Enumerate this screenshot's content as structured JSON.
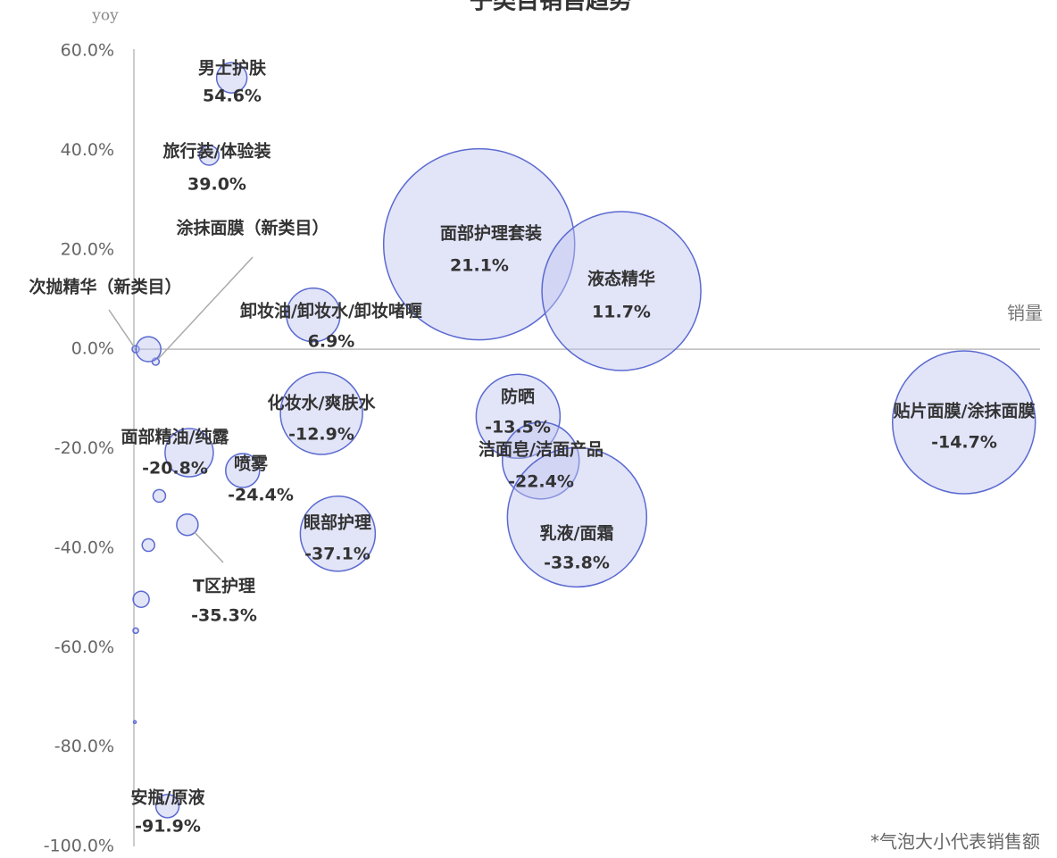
{
  "chart_data": {
    "type": "bubble",
    "title": "子类目销售趋势",
    "x_label": "销量",
    "y_label": "yoy",
    "note": "*气泡大小代表销售额",
    "color": "#5a6ad0",
    "xlim": [
      0,
      100
    ],
    "ylim": [
      -100,
      60
    ],
    "yticks": [
      {
        "value": 60,
        "label": "60.0%"
      },
      {
        "value": 40,
        "label": "40.0%"
      },
      {
        "value": 20,
        "label": "20.0%"
      },
      {
        "value": 0,
        "label": "0.0%"
      },
      {
        "value": -20,
        "label": "-20.0%"
      },
      {
        "value": -40,
        "label": "-40.0%"
      },
      {
        "value": -60,
        "label": "-60.0%"
      },
      {
        "value": -80,
        "label": "-80.0%"
      },
      {
        "value": -100,
        "label": "-100.0%"
      }
    ],
    "labels": [
      "男士护肤",
      "旅行装/体验装",
      "涂抹面膜（新类目）",
      "次抛精华（新类目）",
      null,
      "面部护理套装",
      "液态精华",
      "卸妆油/卸妆水/卸妆啫喱",
      "化妆水/爽肤水",
      "防晒",
      "洁面皂/洁面产品",
      "乳液/面霜",
      "贴片面膜/涂抹面膜",
      "面部精油/纯露",
      "喷雾",
      "T区护理",
      "眼部护理",
      "安瓶/原液",
      null,
      null,
      null,
      null,
      null
    ],
    "x": [
      10.8,
      8.3,
      2.4,
      0.2,
      1.6,
      38.1,
      53.8,
      19.8,
      20.7,
      42.4,
      44.9,
      48.9,
      91.6,
      6.1,
      12.0,
      5.9,
      22.5,
      3.7,
      2.8,
      1.6,
      0.8,
      0.2,
      0.1
    ],
    "values": [
      54.6,
      39.0,
      -2.5,
      0,
      0,
      21.1,
      11.7,
      6.9,
      -12.9,
      -13.5,
      -22.4,
      -33.8,
      -14.7,
      -20.8,
      -24.4,
      -35.3,
      -37.1,
      -91.9,
      -29.5,
      -39.4,
      -50.3,
      -56.6,
      -75.0
    ],
    "value_labels": [
      "54.6%",
      "39.0%",
      null,
      null,
      null,
      "21.1%",
      "11.7%",
      "6.9%",
      "-12.9%",
      "-13.5%",
      "-22.4%",
      "-33.8%",
      "-14.7%",
      "-20.8%",
      "-24.4%",
      "-35.3%",
      "-37.1%",
      "-91.9%",
      null,
      null,
      null,
      null,
      null
    ],
    "sizes": [
      17,
      11,
      4,
      4,
      14,
      107,
      89,
      30,
      46,
      47,
      43,
      78,
      80,
      27,
      19,
      12,
      42,
      13,
      7,
      7,
      9,
      3,
      1.5
    ]
  }
}
